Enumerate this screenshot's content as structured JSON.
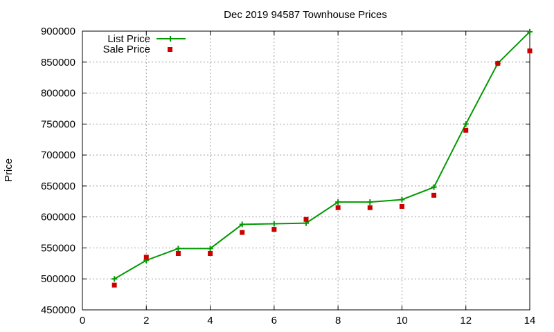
{
  "chart_data": {
    "type": "line",
    "title": "Dec 2019 94587 Townhouse Prices",
    "xlabel": "",
    "ylabel": "Price",
    "xlim": [
      0,
      14
    ],
    "ylim": [
      450000,
      900000
    ],
    "xticks": [
      0,
      2,
      4,
      6,
      8,
      10,
      12,
      14
    ],
    "yticks": [
      450000,
      500000,
      550000,
      600000,
      650000,
      700000,
      750000,
      800000,
      850000,
      900000
    ],
    "grid": true,
    "legend_position": "top-left",
    "series": [
      {
        "name": "List Price",
        "style": "line-plus",
        "color": "#009900",
        "x": [
          1,
          2,
          3,
          4,
          5,
          6,
          7,
          8,
          9,
          10,
          11,
          12,
          13,
          14
        ],
        "y": [
          500000,
          530000,
          549000,
          549000,
          588000,
          589000,
          590000,
          624000,
          624000,
          628000,
          648000,
          750000,
          848000,
          899000
        ]
      },
      {
        "name": "Sale Price",
        "style": "square",
        "color": "#cc0000",
        "x": [
          1,
          2,
          3,
          4,
          5,
          6,
          7,
          8,
          9,
          10,
          11,
          12,
          13,
          14
        ],
        "y": [
          490000,
          535000,
          541000,
          541000,
          575000,
          580000,
          596000,
          615000,
          615000,
          617000,
          635000,
          740000,
          848000,
          868000
        ]
      }
    ]
  }
}
